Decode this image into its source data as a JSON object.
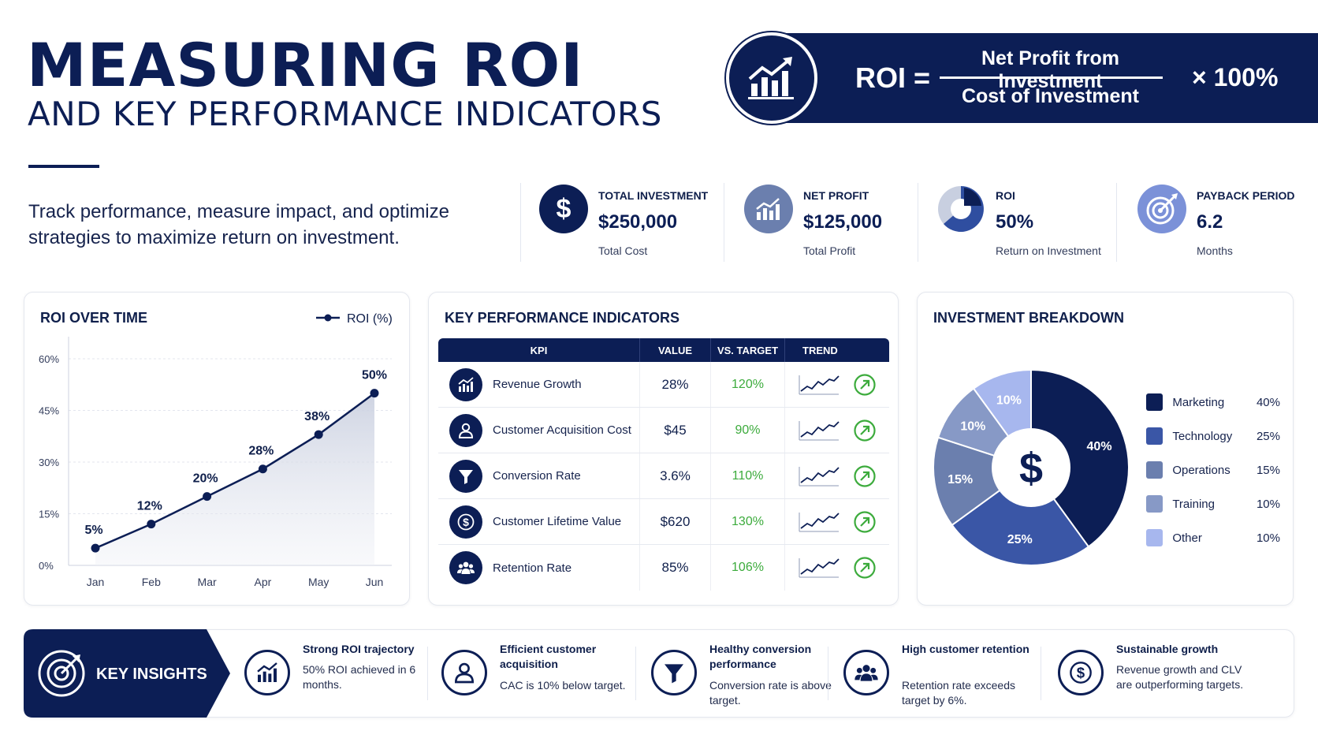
{
  "header": {
    "title": "MEASURING ROI",
    "subtitle": "AND KEY PERFORMANCE INDICATORS",
    "tagline": "Track performance, measure impact, and optimize strategies to maximize return on investment."
  },
  "formula": {
    "lhs": "ROI =",
    "numerator": "Net Profit from Investment",
    "denominator": "Cost of Investment",
    "multiplier": "× 100%"
  },
  "metrics": [
    {
      "label": "TOTAL INVESTMENT",
      "value": "$250,000",
      "sub": "Total Cost",
      "icon": "dollar-icon"
    },
    {
      "label": "NET PROFIT",
      "value": "$125,000",
      "sub": "Total Profit",
      "icon": "bar-chart-icon"
    },
    {
      "label": "ROI",
      "value": "50%",
      "sub": "Return on Investment",
      "icon": "pie-chart-icon"
    },
    {
      "label": "PAYBACK PERIOD",
      "value": "6.2",
      "sub": "Months",
      "icon": "target-icon"
    }
  ],
  "roi_card": {
    "title": "ROI OVER TIME",
    "legend": "ROI (%)"
  },
  "kpi_card": {
    "title": "KEY PERFORMANCE INDICATORS",
    "headers": [
      "KPI",
      "VALUE",
      "VS. TARGET",
      "TREND"
    ],
    "rows": [
      {
        "name": "Revenue Growth",
        "value": "28%",
        "target": "120%",
        "icon": "bar-chart-icon"
      },
      {
        "name": "Customer Acquisition Cost",
        "value": "$45",
        "target": "90%",
        "icon": "user-icon"
      },
      {
        "name": "Conversion Rate",
        "value": "3.6%",
        "target": "110%",
        "icon": "funnel-icon"
      },
      {
        "name": "Customer Lifetime Value",
        "value": "$620",
        "target": "130%",
        "icon": "dollar-icon"
      },
      {
        "name": "Retention Rate",
        "value": "85%",
        "target": "106%",
        "icon": "users-icon"
      }
    ]
  },
  "breakdown_card": {
    "title": "INVESTMENT BREAKDOWN",
    "center_symbol": "$",
    "items": [
      {
        "name": "Marketing",
        "pct": "40%",
        "value": 40,
        "color": "#0c1e55"
      },
      {
        "name": "Technology",
        "pct": "25%",
        "value": 25,
        "color": "#3a56a6"
      },
      {
        "name": "Operations",
        "pct": "15%",
        "value": 15,
        "color": "#6b7fae"
      },
      {
        "name": "Training",
        "pct": "10%",
        "value": 10,
        "color": "#8799c6"
      },
      {
        "name": "Other",
        "pct": "10%",
        "value": 10,
        "color": "#a7b7ee"
      }
    ]
  },
  "chart_data": {
    "type": "line",
    "title": "ROI OVER TIME",
    "categories": [
      "Jan",
      "Feb",
      "Mar",
      "Apr",
      "May",
      "Jun"
    ],
    "series": [
      {
        "name": "ROI (%)",
        "values": [
          5,
          12,
          20,
          28,
          38,
          50
        ]
      }
    ],
    "data_labels": [
      "5%",
      "12%",
      "20%",
      "28%",
      "38%",
      "50%"
    ],
    "ylim": [
      0,
      60
    ],
    "yticks": [
      "0%",
      "15%",
      "30%",
      "45%",
      "60%"
    ],
    "ytick_values": [
      0,
      15,
      30,
      45,
      60
    ],
    "grid": true,
    "legend": "top-right"
  },
  "insights": {
    "badge": "KEY INSIGHTS",
    "items": [
      {
        "title": "Strong ROI trajectory",
        "body": "50% ROI achieved in 6 months.",
        "icon": "bar-chart-icon"
      },
      {
        "title": "Efficient customer acquisition",
        "body": "CAC is 10% below target.",
        "icon": "user-icon"
      },
      {
        "title": "Healthy conversion performance",
        "body": "Conversion rate is above target.",
        "icon": "funnel-icon"
      },
      {
        "title": "High customer retention",
        "body": "Retention rate exceeds target by 6%.",
        "icon": "users-icon"
      },
      {
        "title": "Sustainable growth",
        "body": "Revenue growth and CLV are outperforming targets.",
        "icon": "dollar-icon"
      }
    ]
  },
  "colors": {
    "navy": "#0c1e55",
    "positive": "#3cab3c"
  }
}
